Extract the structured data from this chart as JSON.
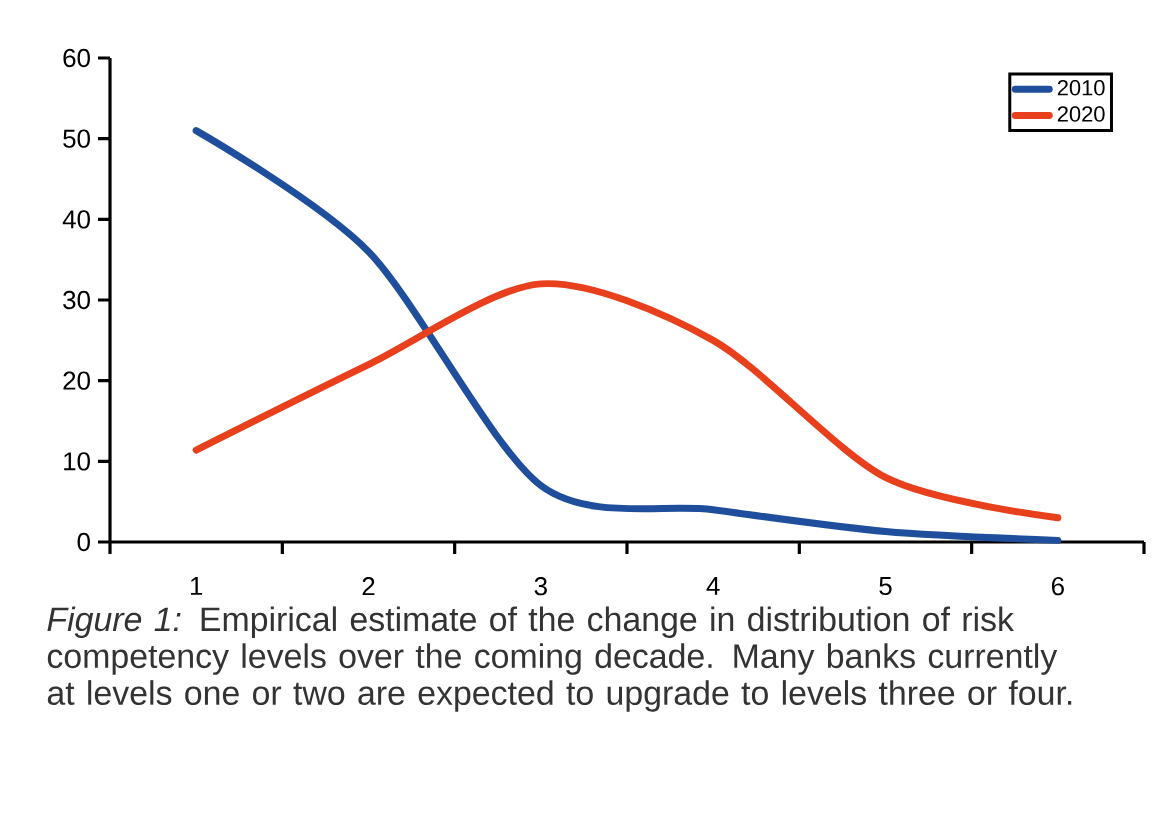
{
  "chart_data": {
    "type": "line",
    "categories": [
      "1",
      "2",
      "3",
      "4",
      "5",
      "6"
    ],
    "series": [
      {
        "name": "2010",
        "color": "#1f4e9c",
        "values": [
          51,
          36,
          7,
          4,
          1.3,
          0.2
        ]
      },
      {
        "name": "2020",
        "color": "#e8401c",
        "values": [
          11.4,
          22,
          32,
          25,
          8,
          3
        ]
      }
    ],
    "ylim": [
      0,
      60
    ],
    "yticks": [
      0,
      10,
      20,
      30,
      40,
      50,
      60
    ],
    "legend": "top right",
    "marker": "none",
    "line_style": "solid",
    "annotations": [
      "*Figure 1:* Empirical estimate of the change in distribution of risk competency levels over the coming decade. Many banks currently at levels one or two are expected to upgrade to levels three or four."
    ]
  }
}
